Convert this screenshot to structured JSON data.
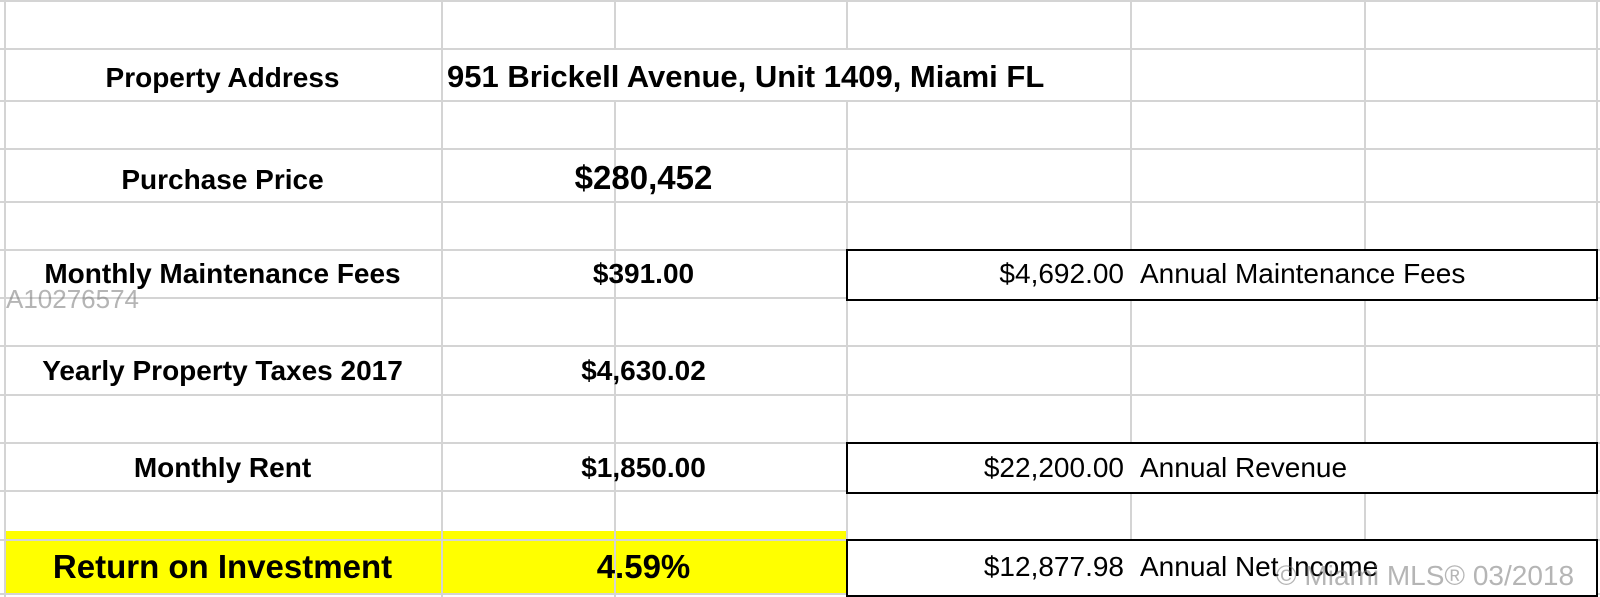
{
  "rows": {
    "address": {
      "label": "Property Address",
      "value": "951 Brickell Avenue, Unit 1409, Miami FL"
    },
    "purchase": {
      "label": "Purchase Price",
      "value": "$280,452"
    },
    "maintenance": {
      "label": "Monthly Maintenance Fees",
      "value": "$391.00",
      "annual_value": "$4,692.00",
      "annual_label": "Annual Maintenance Fees"
    },
    "taxes": {
      "label": "Yearly Property Taxes 2017",
      "value": "$4,630.02"
    },
    "rent": {
      "label": "Monthly Rent",
      "value": "$1,850.00",
      "annual_value": "$22,200.00",
      "annual_label": "Annual Revenue"
    },
    "roi": {
      "label": "Return on Investment",
      "value": "4.59%",
      "annual_value": "$12,877.98",
      "annual_label": "Annual Net Income"
    }
  },
  "watermarks": {
    "mls_id": "A10276574",
    "copyright": "© Miami MLS® 03/2018"
  },
  "colors": {
    "highlight": "#ffff00",
    "gridline": "#d4d4d4",
    "border": "#000000"
  }
}
